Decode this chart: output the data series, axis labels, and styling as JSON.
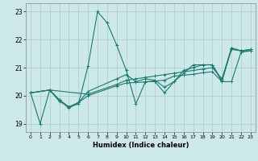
{
  "xlabel": "Humidex (Indice chaleur)",
  "bg_color": "#cce8e8",
  "grid_color": "#aacccc",
  "line_color": "#1a7a6e",
  "xlim": [
    -0.5,
    23.5
  ],
  "ylim": [
    18.7,
    23.3
  ],
  "yticks": [
    19,
    20,
    21,
    22,
    23
  ],
  "xticks": [
    0,
    1,
    2,
    3,
    4,
    5,
    6,
    7,
    8,
    9,
    10,
    11,
    12,
    13,
    14,
    15,
    16,
    17,
    18,
    19,
    20,
    21,
    22,
    23
  ],
  "series": [
    {
      "x": [
        0,
        1,
        2,
        3,
        4,
        5,
        6,
        7,
        8,
        9,
        10,
        11,
        12,
        13,
        14,
        15,
        16,
        17,
        18,
        19,
        20,
        21,
        22,
        23
      ],
      "y": [
        20.1,
        19.0,
        20.2,
        19.8,
        19.6,
        19.7,
        21.05,
        23.0,
        22.6,
        21.8,
        20.9,
        19.7,
        20.5,
        20.5,
        20.1,
        20.5,
        20.9,
        21.0,
        21.1,
        21.1,
        20.5,
        21.7,
        21.6,
        21.6
      ]
    },
    {
      "x": [
        0,
        2,
        3,
        4,
        5,
        6,
        9,
        10,
        11,
        12,
        13,
        14,
        15,
        16,
        17,
        18,
        19,
        20,
        21,
        22,
        23
      ],
      "y": [
        20.1,
        20.2,
        19.85,
        19.55,
        19.75,
        20.0,
        20.35,
        20.45,
        20.47,
        20.49,
        20.52,
        20.55,
        20.7,
        20.73,
        20.76,
        20.82,
        20.85,
        20.5,
        20.5,
        21.55,
        21.6
      ]
    },
    {
      "x": [
        0,
        2,
        3,
        4,
        5,
        6,
        9,
        10,
        11,
        12,
        13,
        14,
        15,
        16,
        17,
        18,
        19,
        20,
        21,
        22,
        23
      ],
      "y": [
        20.1,
        20.2,
        19.85,
        19.6,
        19.75,
        20.15,
        20.6,
        20.75,
        20.5,
        20.6,
        20.55,
        20.3,
        20.5,
        20.8,
        21.1,
        21.1,
        21.1,
        20.55,
        21.65,
        21.6,
        21.65
      ]
    },
    {
      "x": [
        0,
        2,
        6,
        9,
        10,
        11,
        12,
        13,
        14,
        15,
        16,
        17,
        18,
        19,
        20,
        21,
        22,
        23
      ],
      "y": [
        20.1,
        20.2,
        20.05,
        20.4,
        20.55,
        20.6,
        20.65,
        20.7,
        20.75,
        20.8,
        20.85,
        20.9,
        20.95,
        21.0,
        20.6,
        21.7,
        21.6,
        21.65
      ]
    }
  ]
}
